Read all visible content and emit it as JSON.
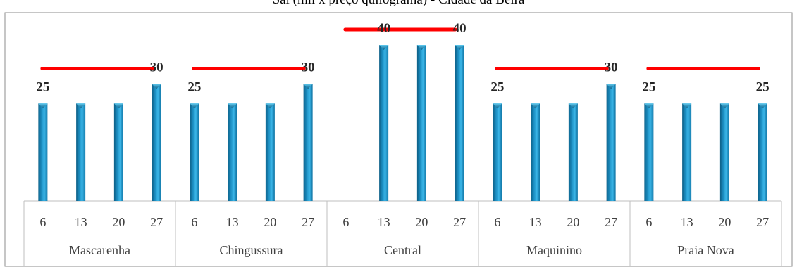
{
  "chart_data": {
    "type": "bar",
    "title": "Sal (mil x preço quilograma) - Cidade da Beira",
    "groups": [
      {
        "name": "Mascarenha",
        "categories": [
          "6",
          "13",
          "20",
          "27"
        ],
        "values": [
          25,
          25,
          25,
          30
        ],
        "target_line": 30
      },
      {
        "name": "Chingussura",
        "categories": [
          "6",
          "13",
          "20",
          "27"
        ],
        "values": [
          25,
          25,
          25,
          30
        ],
        "target_line": 30
      },
      {
        "name": "Central",
        "categories": [
          "6",
          "13",
          "20",
          "27"
        ],
        "values": [
          null,
          40,
          40,
          40
        ],
        "target_line": 40
      },
      {
        "name": "Maquinino",
        "categories": [
          "6",
          "13",
          "20",
          "27"
        ],
        "values": [
          25,
          25,
          25,
          30
        ],
        "target_line": 30
      },
      {
        "name": "Praia Nova",
        "categories": [
          "6",
          "13",
          "20",
          "27"
        ],
        "values": [
          25,
          25,
          25,
          25
        ],
        "target_line": 30
      }
    ],
    "data_labels": [
      {
        "group": 0,
        "category": 0,
        "text": "25"
      },
      {
        "group": 0,
        "category": 3,
        "text": "30"
      },
      {
        "group": 1,
        "category": 0,
        "text": "25"
      },
      {
        "group": 1,
        "category": 3,
        "text": "30"
      },
      {
        "group": 2,
        "category": 1,
        "text": "40"
      },
      {
        "group": 2,
        "category": 3,
        "text": "40"
      },
      {
        "group": 3,
        "category": 0,
        "text": "25"
      },
      {
        "group": 3,
        "category": 3,
        "text": "30"
      },
      {
        "group": 4,
        "category": 0,
        "text": "25"
      },
      {
        "group": 4,
        "category": 3,
        "text": "25"
      }
    ],
    "bar_color": "#1b8ec2",
    "line_color": "#ff0000",
    "grid": false,
    "legend": "none"
  }
}
